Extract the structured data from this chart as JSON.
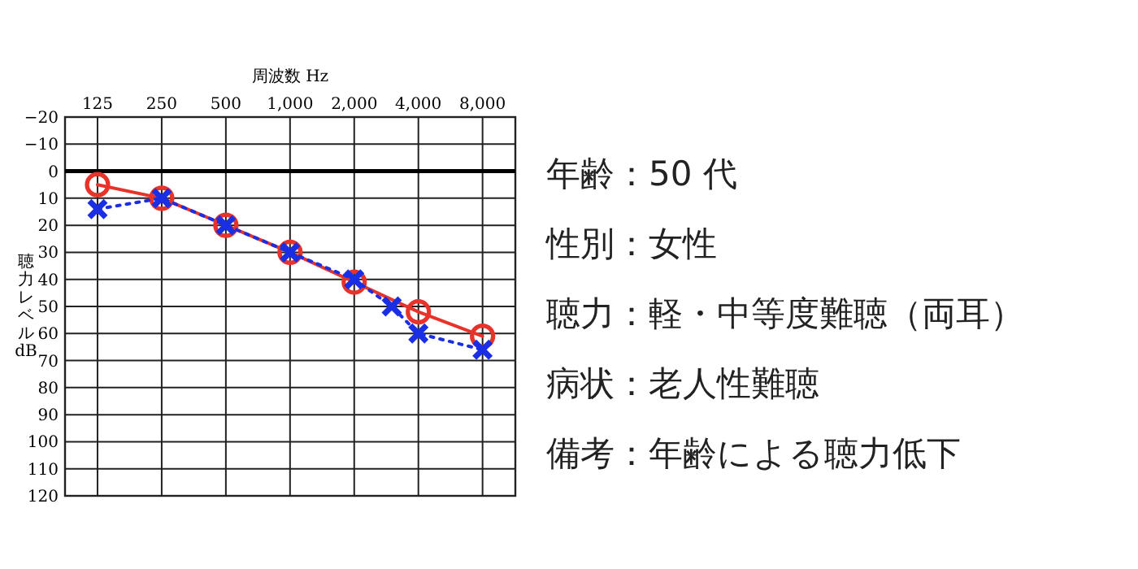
{
  "chart_data": [
    {
      "type": "line",
      "xlabel": "周波数 Hz",
      "ylabel": "聴力レベルdB",
      "log": "x",
      "xlim": [
        88,
        11400
      ],
      "xticks": [
        125,
        250,
        500,
        {
          "value": 1000,
          "label": "1,000"
        },
        {
          "value": 2000,
          "label": "2,000"
        },
        {
          "value": 4000,
          "label": "4,000"
        },
        {
          "value": 8000,
          "label": "8,000"
        }
      ],
      "ylim": [
        120,
        -20
      ],
      "yticks": [
        {
          "value": -20,
          "label": "−20"
        },
        {
          "value": -10,
          "label": "−10"
        },
        0,
        10,
        20,
        30,
        40,
        50,
        60,
        70,
        80,
        90,
        100,
        110,
        120
      ],
      "grid": true,
      "ref_lines": [
        {
          "axis": "y",
          "value": 0,
          "color": "#000000"
        }
      ],
      "series": [
        {
          "color": "#e8332a",
          "marker": "circle",
          "line_style": "solid",
          "x": [
            125,
            250,
            500,
            1000,
            2000,
            4000,
            8000
          ],
          "values": [
            5,
            10,
            20,
            30,
            41,
            52,
            61
          ]
        },
        {
          "color": "#1a2ee6",
          "marker": "cross",
          "line_style": "dotted",
          "x": [
            125,
            250,
            500,
            1000,
            2000,
            3000,
            4000,
            8000
          ],
          "values": [
            14,
            10,
            20,
            30,
            40,
            50,
            60,
            66
          ]
        }
      ]
    },
    {
      "type": "other",
      "annotations": [
        "年齢：50 代",
        "性別：女性",
        "聴力：軽・中等度難聴（両耳）",
        "病状：老人性難聴",
        "備考：年齢による聴力低下"
      ]
    }
  ]
}
